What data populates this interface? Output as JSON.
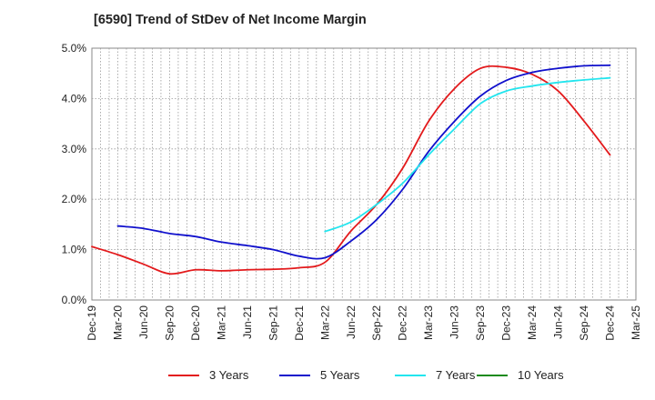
{
  "chart_data": {
    "type": "line",
    "title": "[6590]  Trend of StDev of Net Income Margin",
    "x": [
      "Dec-19",
      "Mar-20",
      "Jun-20",
      "Sep-20",
      "Dec-20",
      "Mar-21",
      "Jun-21",
      "Sep-21",
      "Dec-21",
      "Mar-22",
      "Jun-22",
      "Sep-22",
      "Dec-22",
      "Mar-23",
      "Jun-23",
      "Sep-23",
      "Dec-23",
      "Mar-24",
      "Jun-24",
      "Sep-24",
      "Dec-24",
      "Mar-25"
    ],
    "ylim": [
      0,
      5
    ],
    "y_ticks": [
      "0.0%",
      "1.0%",
      "2.0%",
      "3.0%",
      "4.0%",
      "5.0%"
    ],
    "grid": true,
    "legend_position": "bottom",
    "series": [
      {
        "name": "3 Years",
        "color": "#e31a1c",
        "values": [
          1.06,
          0.9,
          0.71,
          0.52,
          0.6,
          0.58,
          0.6,
          0.61,
          0.64,
          0.75,
          1.37,
          1.9,
          2.62,
          3.55,
          4.2,
          4.6,
          4.62,
          4.48,
          4.15,
          3.55,
          2.88,
          null
        ]
      },
      {
        "name": "5 Years",
        "color": "#1010cc",
        "values": [
          null,
          1.47,
          1.42,
          1.32,
          1.26,
          1.15,
          1.08,
          1.0,
          0.87,
          0.84,
          1.17,
          1.6,
          2.2,
          2.95,
          3.55,
          4.05,
          4.36,
          4.52,
          4.6,
          4.65,
          4.66,
          null
        ]
      },
      {
        "name": "7 Years",
        "color": "#22e5ee",
        "values": [
          null,
          null,
          null,
          null,
          null,
          null,
          null,
          null,
          null,
          1.36,
          1.55,
          1.9,
          2.32,
          2.88,
          3.4,
          3.9,
          4.15,
          4.25,
          4.32,
          4.37,
          4.41,
          null
        ]
      },
      {
        "name": "10 Years",
        "color": "#1a8a1a",
        "values": [
          null,
          null,
          null,
          null,
          null,
          null,
          null,
          null,
          null,
          null,
          null,
          null,
          null,
          null,
          null,
          null,
          null,
          null,
          null,
          null,
          null,
          null
        ]
      }
    ]
  }
}
